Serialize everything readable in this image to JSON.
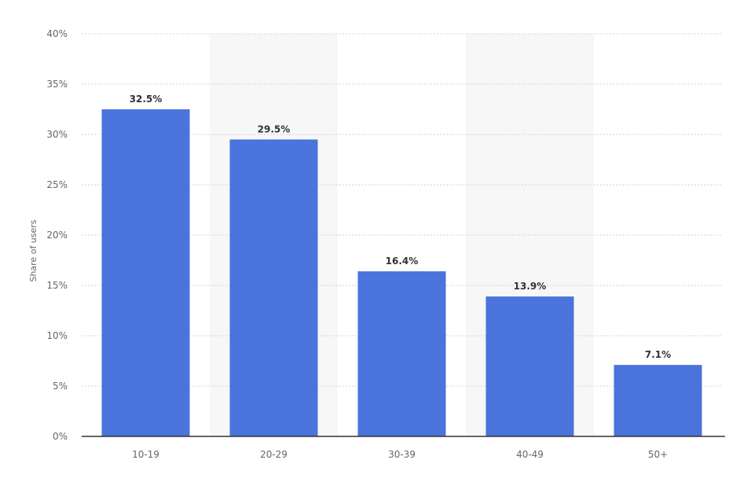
{
  "chart_data": {
    "type": "bar",
    "categories": [
      "10-19",
      "20-29",
      "30-39",
      "40-49",
      "50+"
    ],
    "values": [
      32.5,
      29.5,
      16.4,
      13.9,
      7.1
    ],
    "value_labels": [
      "32.5%",
      "29.5%",
      "16.4%",
      "13.9%",
      "7.1%"
    ],
    "title": "",
    "xlabel": "",
    "ylabel": "Share of users",
    "ylim": [
      0,
      40
    ],
    "yticks": [
      0,
      5,
      10,
      15,
      20,
      25,
      30,
      35,
      40
    ],
    "ytick_labels": [
      "0%",
      "5%",
      "10%",
      "15%",
      "20%",
      "25%",
      "30%",
      "35%",
      "40%"
    ],
    "grid": true,
    "bar_color": "#4a74dc",
    "band_color": "#f7f7f7"
  }
}
